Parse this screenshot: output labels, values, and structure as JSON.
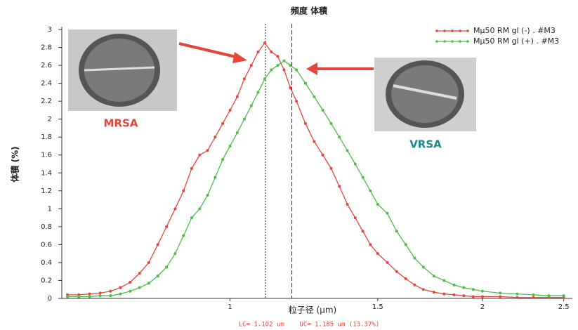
{
  "chart_data": {
    "type": "line",
    "title": "頻度 体積",
    "ylabel": "体積 (%)",
    "xlabel": "粒子径 (μm)",
    "footer": "LC= 1.102 um    UC= 1.185 um (13.37%)",
    "annotations": [
      "MRSA",
      "VRSA"
    ],
    "xscale": "log",
    "range_lines": [
      1.102,
      1.185
    ],
    "x": [
      0.64,
      0.66,
      0.68,
      0.7,
      0.72,
      0.74,
      0.76,
      0.78,
      0.8,
      0.82,
      0.84,
      0.86,
      0.88,
      0.9,
      0.92,
      0.94,
      0.96,
      0.98,
      1.0,
      1.02,
      1.04,
      1.06,
      1.08,
      1.1,
      1.12,
      1.14,
      1.16,
      1.18,
      1.2,
      1.23,
      1.26,
      1.29,
      1.32,
      1.35,
      1.38,
      1.41,
      1.44,
      1.47,
      1.5,
      1.54,
      1.58,
      1.62,
      1.66,
      1.7,
      1.75,
      1.8,
      1.85,
      1.9,
      1.95,
      2.0,
      2.1,
      2.2,
      2.3,
      2.4,
      2.5
    ],
    "series": [
      {
        "name": "Mμ50 RM gl (-) . #M3",
        "color": "#e5463a",
        "values": [
          0.04,
          0.04,
          0.05,
          0.06,
          0.08,
          0.12,
          0.18,
          0.28,
          0.4,
          0.6,
          0.8,
          1.0,
          1.2,
          1.45,
          1.6,
          1.65,
          1.8,
          1.95,
          2.1,
          2.25,
          2.45,
          2.6,
          2.75,
          2.85,
          2.75,
          2.7,
          2.55,
          2.35,
          2.2,
          1.95,
          1.75,
          1.6,
          1.45,
          1.25,
          1.05,
          0.9,
          0.75,
          0.6,
          0.5,
          0.4,
          0.3,
          0.22,
          0.15,
          0.1,
          0.07,
          0.05,
          0.04,
          0.03,
          0.02,
          0.02,
          0.02,
          0.01,
          0.01,
          0.01,
          0.01
        ]
      },
      {
        "name": "Mμ50 RM gl (+) . #M3",
        "color": "#4cbf45",
        "values": [
          0.02,
          0.02,
          0.02,
          0.03,
          0.03,
          0.05,
          0.08,
          0.12,
          0.17,
          0.25,
          0.35,
          0.5,
          0.7,
          0.9,
          1.0,
          1.15,
          1.35,
          1.55,
          1.7,
          1.85,
          2.0,
          2.15,
          2.3,
          2.45,
          2.55,
          2.6,
          2.65,
          2.6,
          2.55,
          2.4,
          2.25,
          2.1,
          1.95,
          1.8,
          1.65,
          1.5,
          1.35,
          1.2,
          1.05,
          0.95,
          0.75,
          0.6,
          0.45,
          0.35,
          0.25,
          0.2,
          0.15,
          0.12,
          0.1,
          0.08,
          0.06,
          0.05,
          0.04,
          0.03,
          0.03
        ]
      }
    ],
    "xlim": [
      0.63,
      2.56
    ],
    "xticks": [
      1,
      1.5,
      2,
      2.5
    ],
    "ylim": [
      0,
      3
    ],
    "yticks": [
      0,
      0.2,
      0.4,
      0.6,
      0.8,
      1,
      1.2,
      1.4,
      1.6,
      1.8,
      2,
      2.2,
      2.4,
      2.6,
      2.8,
      3
    ],
    "legend": "top-right"
  }
}
